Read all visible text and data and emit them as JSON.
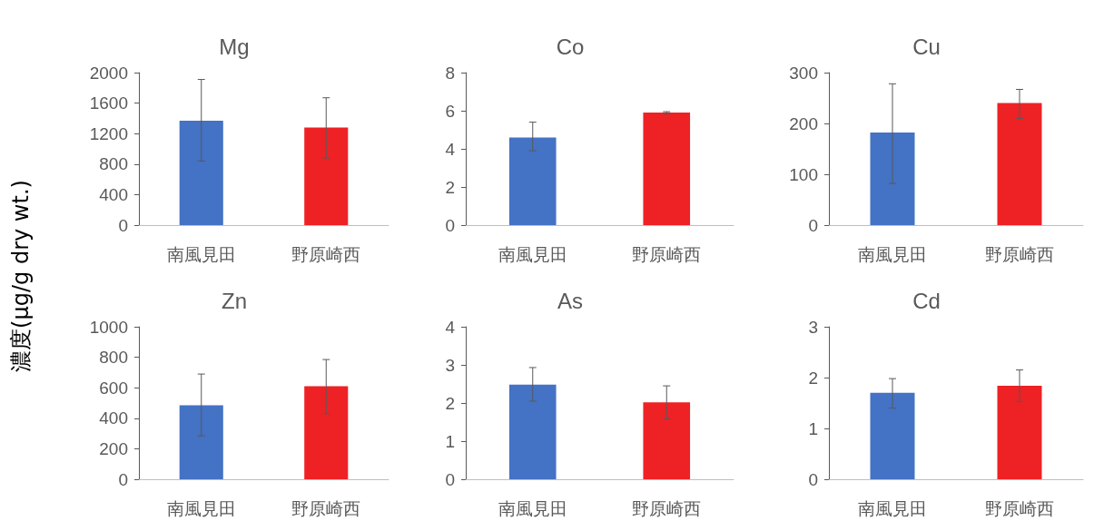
{
  "chart_data": [
    {
      "type": "bar",
      "title": "Mg",
      "ylabel": "濃度(μg/g dry wt.)",
      "categories": [
        "南風見田",
        "野原崎西"
      ],
      "values": [
        1370,
        1280
      ],
      "colors": [
        "#4472c4",
        "#ee2125"
      ],
      "errors": [
        [
          840,
          1910
        ],
        [
          880,
          1670
        ]
      ],
      "ylim": [
        0,
        2000
      ],
      "yticks": [
        0,
        400,
        800,
        1200,
        1600,
        2000
      ]
    },
    {
      "type": "bar",
      "title": "Co",
      "categories": [
        "南風見田",
        "野原崎西"
      ],
      "values": [
        4.6,
        5.9
      ],
      "colors": [
        "#4472c4",
        "#ee2125"
      ],
      "errors": [
        [
          3.9,
          5.4
        ],
        [
          5.85,
          5.95
        ]
      ],
      "ylim": [
        0,
        8
      ],
      "yticks": [
        0,
        2,
        4,
        6,
        8
      ]
    },
    {
      "type": "bar",
      "title": "Cu",
      "categories": [
        "南風見田",
        "野原崎西"
      ],
      "values": [
        182,
        240
      ],
      "colors": [
        "#4472c4",
        "#ee2125"
      ],
      "errors": [
        [
          82,
          278
        ],
        [
          210,
          267
        ]
      ],
      "ylim": [
        0,
        300
      ],
      "yticks": [
        0,
        100,
        200,
        300
      ]
    },
    {
      "type": "bar",
      "title": "Zn",
      "categories": [
        "南風見田",
        "野原崎西"
      ],
      "values": [
        485,
        610
      ],
      "colors": [
        "#4472c4",
        "#ee2125"
      ],
      "errors": [
        [
          285,
          690
        ],
        [
          430,
          785
        ]
      ],
      "ylim": [
        0,
        1000
      ],
      "yticks": [
        0,
        200,
        400,
        600,
        800,
        1000
      ]
    },
    {
      "type": "bar",
      "title": "As",
      "categories": [
        "南風見田",
        "野原崎西"
      ],
      "values": [
        2.48,
        2.02
      ],
      "colors": [
        "#4472c4",
        "#ee2125"
      ],
      "errors": [
        [
          2.05,
          2.93
        ],
        [
          1.58,
          2.45
        ]
      ],
      "ylim": [
        0,
        4
      ],
      "yticks": [
        0,
        1,
        2,
        3,
        4
      ]
    },
    {
      "type": "bar",
      "title": "Cd",
      "categories": [
        "南風見田",
        "野原崎西"
      ],
      "values": [
        1.7,
        1.84
      ],
      "colors": [
        "#4472c4",
        "#ee2125"
      ],
      "errors": [
        [
          1.4,
          1.98
        ],
        [
          1.53,
          2.15
        ]
      ],
      "ylim": [
        0,
        3
      ],
      "yticks": [
        0,
        1,
        2,
        3
      ]
    }
  ]
}
